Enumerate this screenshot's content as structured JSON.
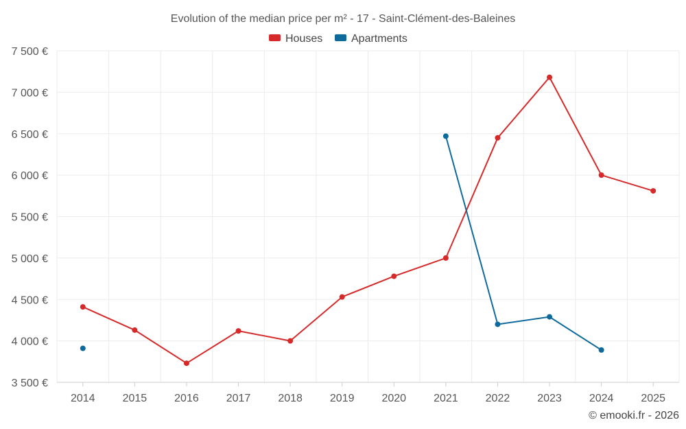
{
  "chart_data": {
    "type": "line",
    "title": "Evolution of the median price per m² - 17 - Saint-Clément-des-Baleines",
    "categories": [
      "2014",
      "2015",
      "2016",
      "2017",
      "2018",
      "2019",
      "2020",
      "2021",
      "2022",
      "2023",
      "2024",
      "2025"
    ],
    "ylim": [
      3500,
      7500
    ],
    "y_ticks": [
      3500,
      4000,
      4500,
      5000,
      5500,
      6000,
      6500,
      7000,
      7500
    ],
    "y_tick_labels": [
      "3 500 €",
      "4 000 €",
      "4 500 €",
      "5 000 €",
      "5 500 €",
      "6 000 €",
      "6 500 €",
      "7 000 €",
      "7 500 €"
    ],
    "grid": true,
    "legend_position": "top-center",
    "series": [
      {
        "name": "Houses",
        "color": "#d62a2a",
        "values": [
          4410,
          4130,
          3730,
          4120,
          4000,
          4530,
          4780,
          5000,
          6450,
          7180,
          6000,
          5810
        ]
      },
      {
        "name": "Apartments",
        "color": "#0f6a9c",
        "values": [
          3910,
          null,
          null,
          null,
          null,
          null,
          null,
          6470,
          4200,
          4290,
          3890,
          null
        ]
      }
    ]
  },
  "copyright": "© emooki.fr - 2026"
}
